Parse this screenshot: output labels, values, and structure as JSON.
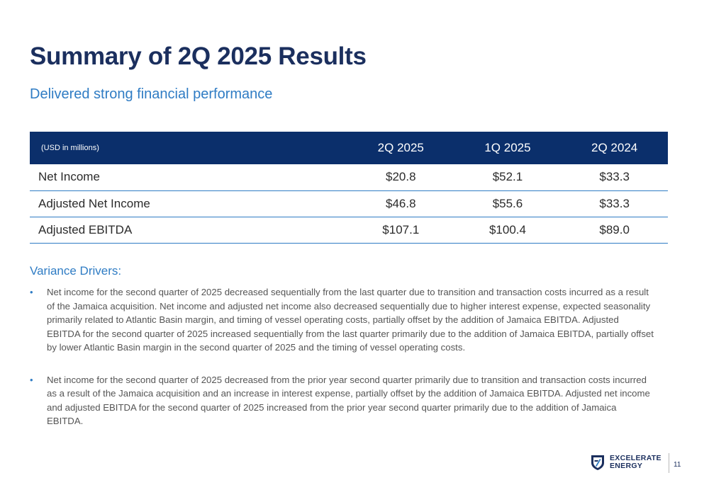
{
  "slide": {
    "title": "Summary of 2Q 2025 Results",
    "subtitle": "Delivered strong financial performance"
  },
  "table": {
    "units_label": "(USD in millions)",
    "columns": [
      "2Q 2025",
      "1Q 2025",
      "2Q 2024"
    ],
    "rows": [
      {
        "label": "Net Income",
        "values": [
          "$20.8",
          "$52.1",
          "$33.3"
        ]
      },
      {
        "label": "Adjusted Net Income",
        "values": [
          "$46.8",
          "$55.6",
          "$33.3"
        ]
      },
      {
        "label": "Adjusted EBITDA",
        "values": [
          "$107.1",
          "$100.4",
          "$89.0"
        ]
      }
    ]
  },
  "variance": {
    "heading": "Variance Drivers:",
    "bullet_glyph": "•",
    "bullets": [
      "Net income for the second quarter of 2025 decreased sequentially from the last quarter due to transition and transaction costs incurred as a result of the Jamaica acquisition. Net income and adjusted net income also decreased sequentially due to higher interest expense, expected seasonality primarily related to Atlantic Basin margin, and timing of vessel operating costs, partially offset by the addition of Jamaica EBITDA. Adjusted EBITDA for the second quarter of 2025 increased sequentially from the last quarter primarily due to the addition of Jamaica EBITDA, partially offset by lower Atlantic Basin margin in the second quarter of 2025 and the timing of vessel operating costs.",
      "Net income for the second quarter of 2025 decreased from the prior year second quarter primarily due to transition and transaction costs incurred as a result of the Jamaica acquisition and an increase in interest expense, partially offset by the addition of Jamaica EBITDA. Adjusted net income and adjusted EBITDA for the second quarter of 2025 increased from the prior year second quarter primarily due to the addition of Jamaica EBITDA."
    ]
  },
  "footer": {
    "logo_icon": "excelerate-shield-logo-icon",
    "logo_line1": "EXCELERATE",
    "logo_line2": "ENERGY",
    "page_number": "11",
    "brand_color": "#1b2f5e",
    "accent_color": "#2f7cc4"
  }
}
